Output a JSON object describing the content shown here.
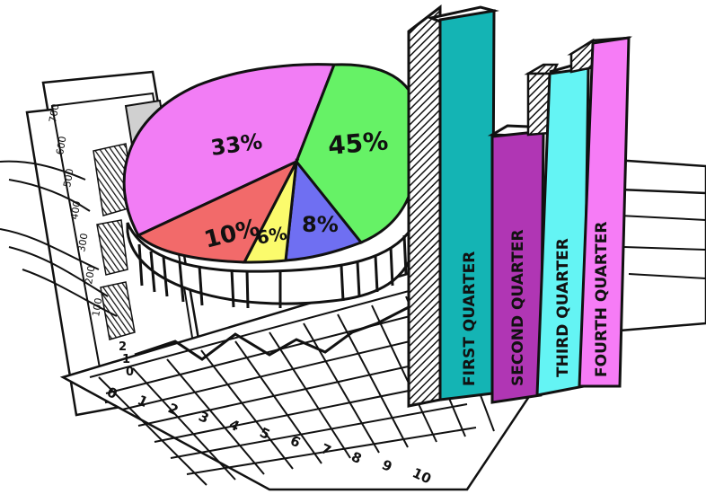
{
  "pie": {
    "slices": [
      {
        "label": "33%",
        "value": 33,
        "color": "#f27df5"
      },
      {
        "label": "45%",
        "value": 45,
        "color": "#66f266"
      },
      {
        "label": "8%",
        "value": 8,
        "color": "#6f6ff2"
      },
      {
        "label": "6%",
        "value": 6,
        "color": "#fbfb6c"
      },
      {
        "label": "10%",
        "value": 10,
        "color": "#f26a6a"
      }
    ]
  },
  "bars": [
    {
      "label": "FIRST QUARTER",
      "color": "#14b4b4"
    },
    {
      "label": "SECOND QUARTER",
      "color": "#b036b4"
    },
    {
      "label": "THIRD QUARTER",
      "color": "#64f4f4"
    },
    {
      "label": "FOURTH QUARTER",
      "color": "#f67cf6"
    }
  ],
  "paper_back": {
    "y_ticks": [
      "700",
      "600",
      "500",
      "400",
      "300",
      "200",
      "100"
    ]
  },
  "paper_grid": {
    "y_ticks": [
      "0",
      "1",
      "2"
    ],
    "x_ticks": [
      "0",
      "1",
      "2",
      "3",
      "4",
      "5",
      "6",
      "7",
      "8",
      "9",
      "10"
    ]
  }
}
